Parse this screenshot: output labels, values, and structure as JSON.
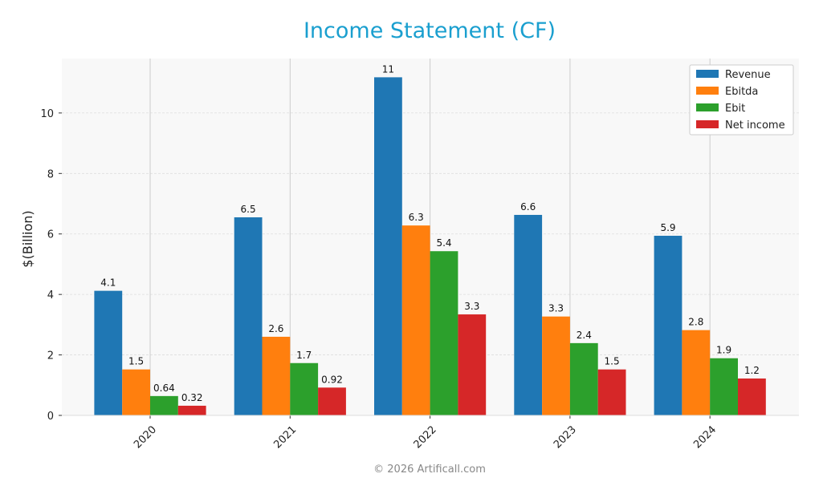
{
  "chart_data": {
    "type": "bar",
    "title": "Income Statement (CF)",
    "ylabel": "$(Billion)",
    "xlabel": "",
    "categories": [
      "2020",
      "2021",
      "2022",
      "2023",
      "2024"
    ],
    "ylim": [
      0,
      11.8
    ],
    "yticks": [
      0,
      2,
      4,
      6,
      8,
      10
    ],
    "grid": true,
    "legend_position": "top-right",
    "series": [
      {
        "name": "Revenue",
        "color": "#1f77b4",
        "values": [
          4.12,
          6.55,
          11.18,
          6.63,
          5.94
        ],
        "labels": [
          "4.1",
          "6.5",
          "11",
          "6.6",
          "5.9"
        ]
      },
      {
        "name": "Ebitda",
        "color": "#ff7f0e",
        "values": [
          1.52,
          2.6,
          6.28,
          3.27,
          2.82
        ],
        "labels": [
          "1.5",
          "2.6",
          "6.3",
          "3.3",
          "2.8"
        ]
      },
      {
        "name": "Ebit",
        "color": "#2ca02c",
        "values": [
          0.64,
          1.73,
          5.43,
          2.39,
          1.89
        ],
        "labels": [
          "0.64",
          "1.7",
          "5.4",
          "2.4",
          "1.9"
        ]
      },
      {
        "name": "Net income",
        "color": "#d62728",
        "values": [
          0.32,
          0.92,
          3.34,
          1.52,
          1.22
        ],
        "labels": [
          "0.32",
          "0.92",
          "3.3",
          "1.5",
          "1.2"
        ]
      }
    ]
  },
  "footer": {
    "copyright": "© 2026 Artificall.com"
  },
  "colors": {
    "title": "#1a9fcf",
    "plot_bg": "#f8f8f8",
    "grid": "#dddddd",
    "footer": "#888888"
  }
}
